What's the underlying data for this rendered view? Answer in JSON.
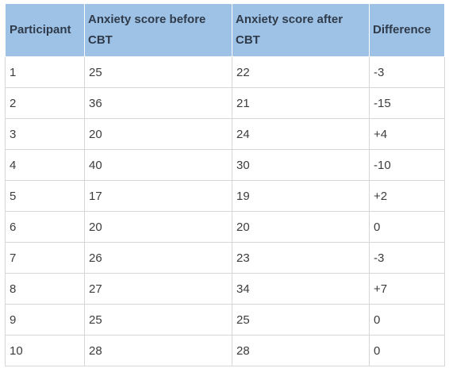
{
  "table": {
    "headers": [
      "Participant",
      "Anxiety score before CBT",
      "Anxiety score after CBT",
      "Difference"
    ],
    "rows": [
      [
        "1",
        "25",
        "22",
        "-3"
      ],
      [
        "2",
        "36",
        "21",
        "-15"
      ],
      [
        "3",
        "20",
        "24",
        "+4"
      ],
      [
        "4",
        "40",
        "30",
        "-10"
      ],
      [
        "5",
        "17",
        "19",
        "+2"
      ],
      [
        "6",
        "20",
        "20",
        "0"
      ],
      [
        "7",
        "26",
        "23",
        "-3"
      ],
      [
        "8",
        "27",
        "34",
        "+7"
      ],
      [
        "9",
        "25",
        "25",
        "0"
      ],
      [
        "10",
        "28",
        "28",
        "0"
      ]
    ],
    "header_color": "#9ec2e6",
    "border_color": "#d6d6d6"
  }
}
